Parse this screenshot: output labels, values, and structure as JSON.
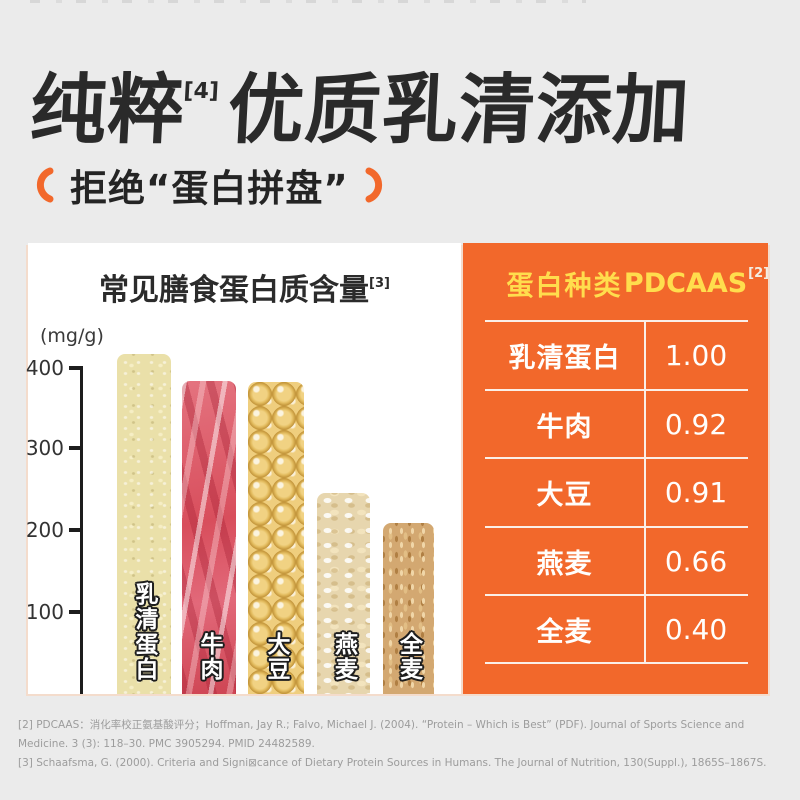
{
  "header": {
    "title_main": "纯粹",
    "title_ref": "[4]",
    "title_rest": "优质乳清添加",
    "subtitle": "拒绝“蛋白拼盘”"
  },
  "chart_data": [
    {
      "type": "bar",
      "title": "常见膳食蛋白质含量",
      "title_ref": "[3]",
      "unit_label": "(mg/g)",
      "categories": [
        "乳清蛋白",
        "牛肉",
        "大豆",
        "燕麦",
        "全麦"
      ],
      "values": [
        415,
        382,
        380,
        245,
        209
      ],
      "bar_textures": [
        "whey-powder",
        "raw-beef",
        "soybeans",
        "oat-flakes",
        "wheat-grains"
      ],
      "xlabel": "",
      "ylabel": "(mg/g)",
      "ylim": [
        0,
        430
      ],
      "yticks": [
        "400",
        "300",
        "200",
        "100"
      ],
      "grid": false,
      "legend": false
    },
    {
      "type": "table",
      "header": [
        "蛋白种类",
        "PDCAAS"
      ],
      "header_ref": "[2]",
      "rows": [
        [
          "乳清蛋白",
          "1.00"
        ],
        [
          "牛肉",
          "0.92"
        ],
        [
          "大豆",
          "0.91"
        ],
        [
          "燕麦",
          "0.66"
        ],
        [
          "全麦",
          "0.40"
        ]
      ]
    }
  ],
  "footnotes": [
    "[2] PDCAAS：消化率校正氨基酸评分；Hoffman, Jay R.; Falvo, Michael J. (2004). “Protein – Which is Best” (PDF). Journal of Sports Science and Medicine. 3 (3): 118–30. PMC 3905294. PMID 24482589.",
    "[3] Schaafsma, G. (2000). Criteria and Signi⊠cance of Dietary Protein Sources in Humans. The Journal of Nutrition, 130(Suppl.), 1865S–1867S."
  ],
  "colors": {
    "background": "#EBEBEB",
    "title_text": "#2A2A2A",
    "accent_orange": "#F2682B",
    "table_header_yellow": "#FFDD4D",
    "table_body_text": "#FFFFFF",
    "footnote_gray": "#9C9C9C"
  }
}
